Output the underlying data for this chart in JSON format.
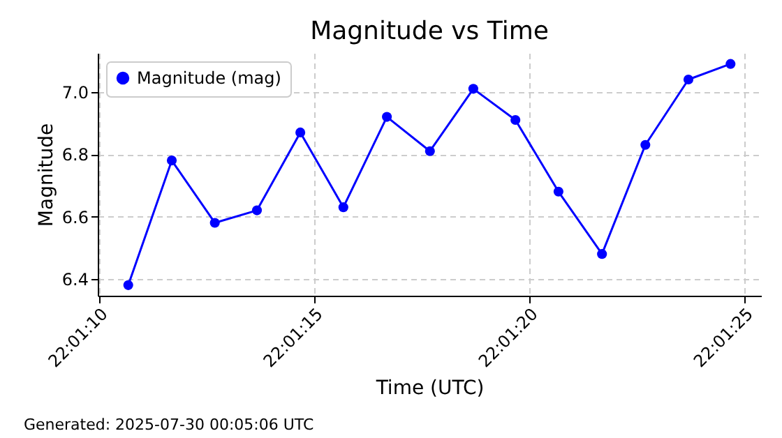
{
  "chart_data": {
    "type": "line",
    "title": "Magnitude vs Time",
    "xlabel": "Time (UTC)",
    "ylabel": "Magnitude",
    "x": [
      22.019633,
      22.019914,
      22.020192,
      22.020464,
      22.020744,
      22.021022,
      22.021303,
      22.021581,
      22.021861,
      22.022133,
      22.022411,
      22.022692,
      22.022972,
      22.02325,
      22.023522
    ],
    "series": [
      {
        "name": "Magnitude (mag)",
        "color": "#0000ff",
        "values": [
          6.38,
          6.78,
          6.58,
          6.62,
          6.87,
          6.63,
          6.92,
          6.81,
          7.01,
          6.91,
          6.68,
          6.48,
          6.83,
          7.04,
          7.09
        ]
      }
    ],
    "xlim": [
      22.019436,
      22.023719
    ],
    "xticks": [
      {
        "value": 22.019444,
        "label": "22:01:10"
      },
      {
        "value": 22.020833,
        "label": "22:01:15"
      },
      {
        "value": 22.022222,
        "label": "22:01:20"
      },
      {
        "value": 22.023611,
        "label": "22:01:25"
      }
    ],
    "ylim": [
      6.346,
      7.125
    ],
    "yticks": [
      6.4,
      6.6,
      6.8,
      {
        "value": 7,
        "label": "7.0"
      }
    ],
    "grid": true,
    "legend": "top left",
    "marker": "circle",
    "line_style": "solid",
    "annotations": [
      "Generated: 2025-07-30 00:05:06 UTC"
    ]
  }
}
